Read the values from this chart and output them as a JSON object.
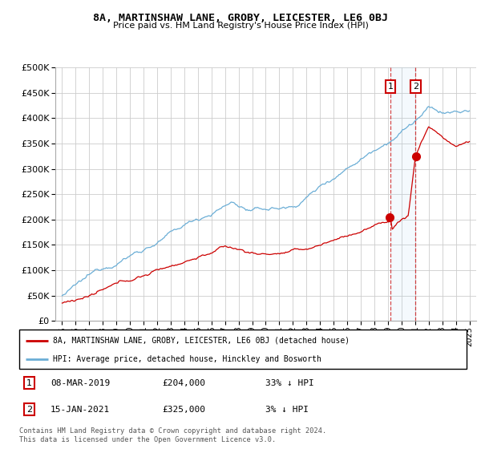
{
  "title": "8A, MARTINSHAW LANE, GROBY, LEICESTER, LE6 0BJ",
  "subtitle": "Price paid vs. HM Land Registry's House Price Index (HPI)",
  "legend_line1": "8A, MARTINSHAW LANE, GROBY, LEICESTER, LE6 0BJ (detached house)",
  "legend_line2": "HPI: Average price, detached house, Hinckley and Bosworth",
  "annotation1_date": "08-MAR-2019",
  "annotation1_price": "£204,000",
  "annotation1_hpi": "33% ↓ HPI",
  "annotation2_date": "15-JAN-2021",
  "annotation2_price": "£325,000",
  "annotation2_hpi": "3% ↓ HPI",
  "footer": "Contains HM Land Registry data © Crown copyright and database right 2024.\nThis data is licensed under the Open Government Licence v3.0.",
  "hpi_color": "#6baed6",
  "price_color": "#cc0000",
  "sale1_year": 2019.18,
  "sale2_year": 2021.04,
  "sale1_price": 204000,
  "sale2_price": 325000,
  "ylim": [
    0,
    500000
  ],
  "xlim_start": 1994.5,
  "xlim_end": 2025.5,
  "yticks": [
    0,
    50000,
    100000,
    150000,
    200000,
    250000,
    300000,
    350000,
    400000,
    450000,
    500000
  ],
  "xticks": [
    1995,
    1996,
    1997,
    1998,
    1999,
    2000,
    2001,
    2002,
    2003,
    2004,
    2005,
    2006,
    2007,
    2008,
    2009,
    2010,
    2011,
    2012,
    2013,
    2014,
    2015,
    2016,
    2017,
    2018,
    2019,
    2020,
    2021,
    2022,
    2023,
    2024,
    2025
  ]
}
